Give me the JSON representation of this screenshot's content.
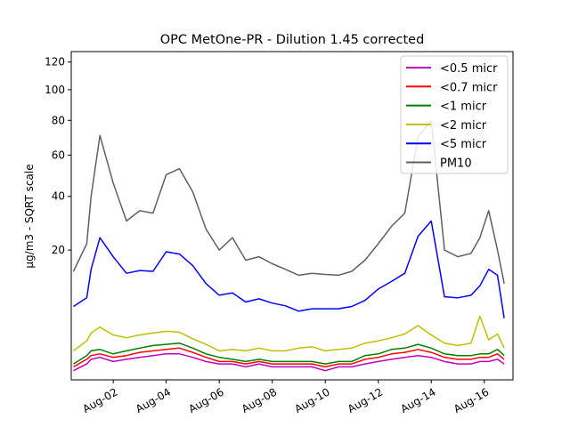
{
  "chart_data": {
    "type": "line",
    "title": "OPC MetOne-PR - Dilution 1.45 corrected",
    "xlabel": "",
    "ylabel": "µg/m3 - SQRT scale",
    "yscale": "sqrt",
    "ylim": [
      0,
      128
    ],
    "xlim": [
      "2023-07-31T10:00",
      "2023-08-17T02:00"
    ],
    "yticks": [
      20,
      40,
      60,
      80,
      100,
      120
    ],
    "xticks": [
      {
        "date": "2023-08-02",
        "label": "Aug-02"
      },
      {
        "date": "2023-08-04",
        "label": "Aug-04"
      },
      {
        "date": "2023-08-06",
        "label": "Aug-06"
      },
      {
        "date": "2023-08-08",
        "label": "Aug-08"
      },
      {
        "date": "2023-08-10",
        "label": "Aug-10"
      },
      {
        "date": "2023-08-12",
        "label": "Aug-12"
      },
      {
        "date": "2023-08-14",
        "label": "Aug-14"
      },
      {
        "date": "2023-08-16",
        "label": "Aug-16"
      }
    ],
    "grid": false,
    "legend_position": "top-right",
    "x": [
      "2023-07-31T12:00",
      "2023-08-01T00:00",
      "2023-08-01T04:00",
      "2023-08-01T12:00",
      "2023-08-02T00:00",
      "2023-08-02T12:00",
      "2023-08-03T00:00",
      "2023-08-03T12:00",
      "2023-08-04T00:00",
      "2023-08-04T12:00",
      "2023-08-05T00:00",
      "2023-08-05T12:00",
      "2023-08-06T00:00",
      "2023-08-06T12:00",
      "2023-08-07T00:00",
      "2023-08-07T12:00",
      "2023-08-08T00:00",
      "2023-08-08T12:00",
      "2023-08-09T00:00",
      "2023-08-09T12:00",
      "2023-08-10T00:00",
      "2023-08-10T12:00",
      "2023-08-11T00:00",
      "2023-08-11T12:00",
      "2023-08-12T00:00",
      "2023-08-12T12:00",
      "2023-08-13T00:00",
      "2023-08-13T12:00",
      "2023-08-14T00:00",
      "2023-08-14T12:00",
      "2023-08-15T00:00",
      "2023-08-15T12:00",
      "2023-08-15T20:00",
      "2023-08-16T04:00",
      "2023-08-16T12:00",
      "2023-08-16T18:00"
    ],
    "series": [
      {
        "name": "<0.5 micr",
        "color": "#bf00bf",
        "values": [
          0.1,
          0.3,
          0.5,
          0.6,
          0.4,
          0.5,
          0.6,
          0.7,
          0.8,
          0.8,
          0.6,
          0.4,
          0.3,
          0.3,
          0.2,
          0.3,
          0.2,
          0.2,
          0.2,
          0.2,
          0.1,
          0.2,
          0.2,
          0.3,
          0.4,
          0.5,
          0.6,
          0.7,
          0.6,
          0.4,
          0.3,
          0.3,
          0.4,
          0.4,
          0.5,
          0.3
        ]
      },
      {
        "name": "<0.7 micr",
        "color": "#ff0000",
        "values": [
          0.2,
          0.5,
          0.7,
          0.8,
          0.6,
          0.7,
          0.9,
          1.0,
          1.1,
          1.2,
          0.9,
          0.6,
          0.4,
          0.4,
          0.3,
          0.4,
          0.3,
          0.3,
          0.3,
          0.3,
          0.2,
          0.3,
          0.3,
          0.5,
          0.6,
          0.8,
          0.9,
          1.1,
          0.9,
          0.6,
          0.5,
          0.5,
          0.6,
          0.6,
          0.8,
          0.5
        ]
      },
      {
        "name": "<1 micr",
        "color": "#008000",
        "values": [
          0.3,
          0.7,
          1.0,
          1.1,
          0.8,
          1.0,
          1.2,
          1.4,
          1.5,
          1.6,
          1.2,
          0.8,
          0.6,
          0.5,
          0.4,
          0.5,
          0.4,
          0.4,
          0.4,
          0.4,
          0.3,
          0.4,
          0.4,
          0.7,
          0.8,
          1.1,
          1.2,
          1.5,
          1.2,
          0.8,
          0.7,
          0.7,
          0.8,
          0.8,
          1.1,
          0.7
        ]
      },
      {
        "name": "<2 micr",
        "color": "#bfbf00",
        "values": [
          1.0,
          1.8,
          2.6,
          3.3,
          2.4,
          2.1,
          2.4,
          2.6,
          2.8,
          2.7,
          2.0,
          1.5,
          1.0,
          1.1,
          1.0,
          1.2,
          1.0,
          1.0,
          1.2,
          1.3,
          1.0,
          1.1,
          1.2,
          1.6,
          1.8,
          2.1,
          2.5,
          3.5,
          2.4,
          1.6,
          1.4,
          1.6,
          4.8,
          1.9,
          2.5,
          1.2
        ]
      },
      {
        "name": "<5 micr",
        "color": "#0000ff",
        "values": [
          6.4,
          8.0,
          14.5,
          24.0,
          18.0,
          13.5,
          14.2,
          14.0,
          19.5,
          18.8,
          15.5,
          11.0,
          8.5,
          9.0,
          7.2,
          7.8,
          7.0,
          6.5,
          5.6,
          6.0,
          6.0,
          6.0,
          6.4,
          7.5,
          9.8,
          11.5,
          13.5,
          24.5,
          30.0,
          8.2,
          8.0,
          8.5,
          10.5,
          14.5,
          13.0,
          4.5
        ]
      },
      {
        "name": "PM10",
        "color": "#606060",
        "values": [
          14.0,
          22.0,
          40.0,
          71.0,
          46.0,
          30.0,
          34.0,
          33.0,
          50.0,
          53.0,
          42.0,
          27.0,
          20.0,
          24.0,
          17.0,
          18.0,
          16.0,
          14.5,
          13.0,
          13.5,
          13.2,
          13.0,
          14.0,
          17.0,
          22.0,
          28.0,
          33.0,
          70.0,
          80.0,
          20.0,
          18.0,
          19.0,
          24.0,
          34.0,
          20.0,
          11.0
        ]
      }
    ]
  }
}
